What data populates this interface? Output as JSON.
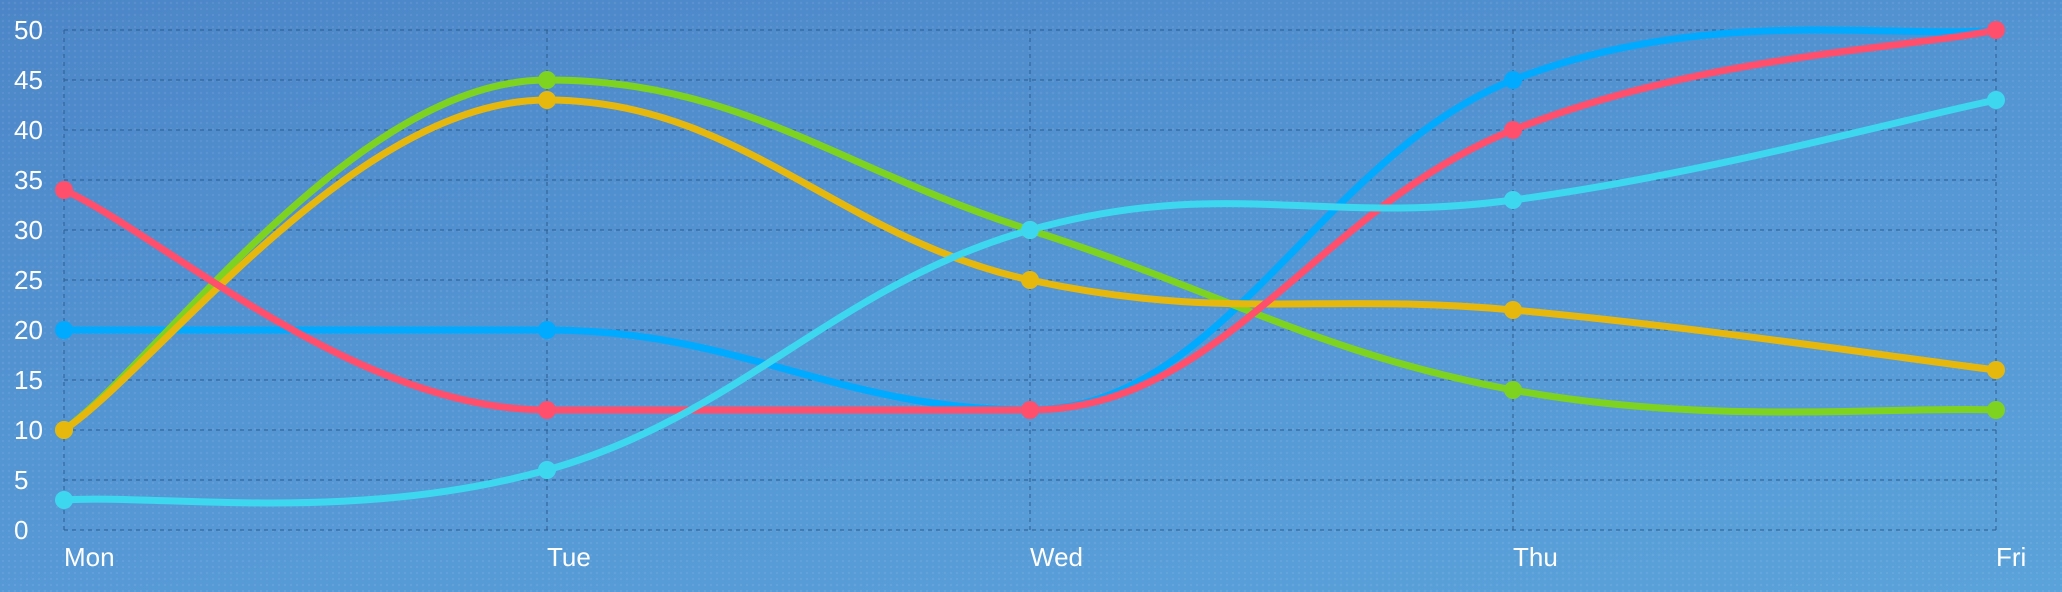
{
  "chart_data": {
    "type": "line",
    "title": "",
    "xlabel": "",
    "ylabel": "",
    "categories": [
      "Mon",
      "Tue",
      "Wed",
      "Thu",
      "Fri"
    ],
    "ylim": [
      0,
      50
    ],
    "yticks": [
      "0",
      "5",
      "10",
      "15",
      "20",
      "25",
      "30",
      "35",
      "40",
      "45",
      "50"
    ],
    "grid": true,
    "smooth": true,
    "series": [
      {
        "color": "#00aaff",
        "values": [
          20,
          20,
          12,
          45,
          50
        ]
      },
      {
        "color": "#7ed321",
        "values": [
          10,
          45,
          30,
          14,
          12
        ]
      },
      {
        "color": "#e6b80e",
        "values": [
          10,
          43,
          25,
          22,
          16
        ]
      },
      {
        "color": "#ff4f6d",
        "values": [
          34,
          12,
          12,
          40,
          50
        ]
      },
      {
        "color": "#3dd8f0",
        "values": [
          3,
          6,
          30,
          33,
          43
        ]
      }
    ]
  }
}
